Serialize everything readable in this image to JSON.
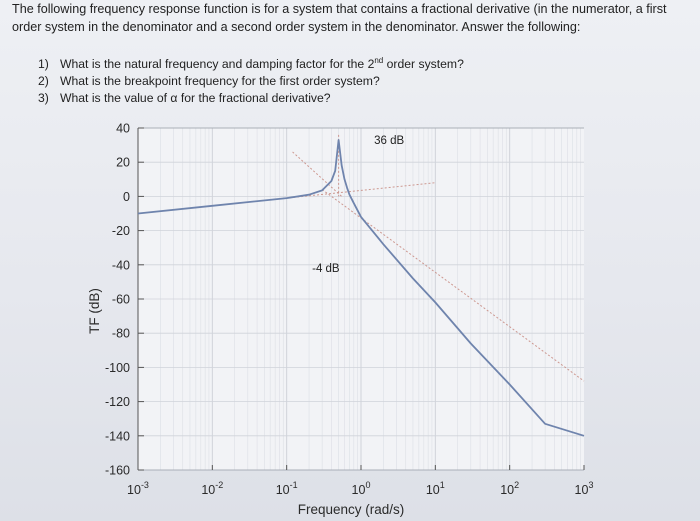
{
  "problem": {
    "intro": "The following frequency response function is for a system that contains a fractional derivative (in the numerator, a first order system in the denominator and a second order system in the denominator. Answer the following:",
    "questions": [
      {
        "num": "1)",
        "pre": "What is the natural frequency and damping factor for the 2",
        "sup": "nd",
        "post": " order system?"
      },
      {
        "num": "2)",
        "pre": "What is the breakpoint frequency for the first order system?",
        "sup": "",
        "post": ""
      },
      {
        "num": "3)",
        "pre": "What is the value of α for the fractional derivative?",
        "sup": "",
        "post": ""
      }
    ]
  },
  "chart_data": {
    "type": "line",
    "xlabel": "Frequency (rad/s)",
    "ylabel": "TF (dB)",
    "xscale": "log",
    "xlim": [
      0.001,
      1000
    ],
    "ylim": [
      -160,
      40
    ],
    "yticks": [
      40,
      20,
      0,
      -20,
      -40,
      -60,
      -80,
      -100,
      -120,
      -140,
      -160
    ],
    "xticks": [
      {
        "base": "10",
        "exp": "-3"
      },
      {
        "base": "10",
        "exp": "-2"
      },
      {
        "base": "10",
        "exp": "-1"
      },
      {
        "base": "10",
        "exp": "0"
      },
      {
        "base": "10",
        "exp": "1"
      },
      {
        "base": "10",
        "exp": "2"
      },
      {
        "base": "10",
        "exp": "3"
      }
    ],
    "grid": true,
    "series": [
      {
        "color": "#6f84ad",
        "x": [
          0.001,
          0.01,
          0.1,
          0.2,
          0.3,
          0.4,
          0.45,
          0.5,
          0.55,
          0.6,
          0.65,
          0.7,
          0.8,
          1,
          2,
          5,
          10,
          30,
          100,
          300,
          1000
        ],
        "y": [
          -10,
          -5.5,
          -1,
          1,
          3.5,
          9,
          15,
          33,
          18,
          10,
          5,
          1,
          -4,
          -12,
          -28,
          -48,
          -62,
          -86,
          -110,
          -133,
          -140
        ]
      }
    ],
    "asymptotes": [
      {
        "x": [
          0.001,
          10
        ],
        "y": [
          -10,
          8
        ]
      },
      {
        "x": [
          0.12,
          0.55
        ],
        "y": [
          26,
          0
        ]
      },
      {
        "x": [
          0.5,
          0.5
        ],
        "y": [
          36,
          0
        ]
      },
      {
        "x": [
          0.3,
          1000
        ],
        "y": [
          4,
          -108
        ]
      }
    ],
    "annotations": [
      {
        "text": "36 dB",
        "x": 1.5,
        "y": 33
      },
      {
        "text": "-4 dB",
        "x": 0.22,
        "y": -42
      }
    ]
  }
}
